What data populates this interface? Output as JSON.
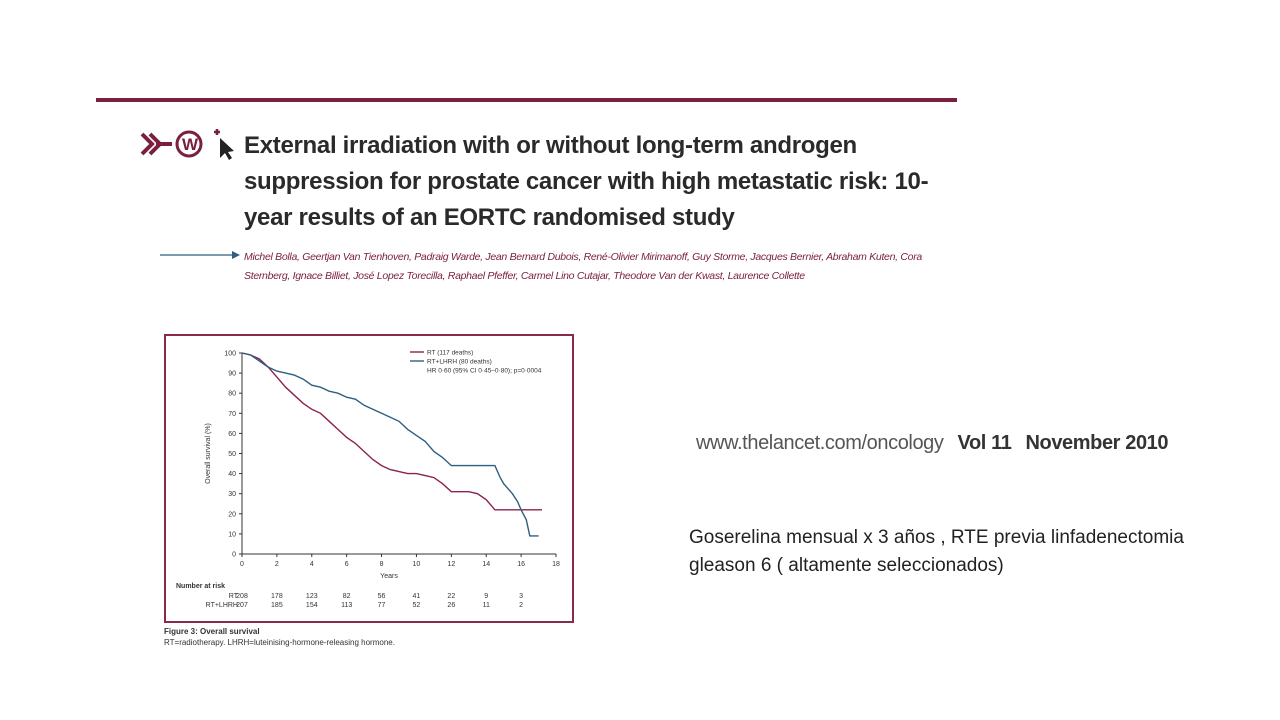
{
  "slide": {
    "title": "External irradiation with or without long-term androgen suppression for prostate cancer with high metastatic risk: 10-year results of an EORTC randomised study",
    "authors": "Michel Bolla, Geertjan Van Tienhoven, Padraig Warde, Jean Bernard Dubois, René-Olivier Mirimanoff, Guy Storme, Jacques Bernier, Abraham Kuten, Cora Sternberg, Ignace Billiet, José Lopez Torecilla, Raphael Pfeffer, Carmel Lino Cutajar, Theodore Van der Kwast, Laurence Collette",
    "journal_url": "www.thelancet.com/oncology",
    "journal_vol": "Vol 11",
    "journal_date": "November 2010",
    "note": "Goserelina mensual x 3 años , RTE previa linfadenectomia gleason 6 ( altamente seleccionados)",
    "figure_caption_bold": "Figure 3: Overall survival",
    "figure_caption_text": "RT=radiotherapy. LHRH=luteinising-hormone-releasing hormone.",
    "colors": {
      "accent": "#7a1f3d",
      "rt": "#8b2252",
      "rt_lhrh": "#2f5f7f"
    }
  },
  "chart_data": {
    "type": "line",
    "title": "",
    "xlabel": "Years",
    "ylabel": "Overall survival (%)",
    "xlim": [
      0,
      18
    ],
    "ylim": [
      0,
      100
    ],
    "x_ticks": [
      0,
      2,
      4,
      6,
      8,
      10,
      12,
      14,
      16,
      18
    ],
    "y_ticks": [
      0,
      10,
      20,
      30,
      40,
      50,
      60,
      70,
      80,
      90,
      100
    ],
    "legend": {
      "rt": "RT (117 deaths)",
      "rt_lhrh": "RT+LHRH (80 deaths)",
      "hr": "HR 0·60 (95% CI 0·45–0·80); p=0·0004"
    },
    "series": [
      {
        "name": "RT",
        "points": [
          [
            0,
            100
          ],
          [
            0.5,
            99
          ],
          [
            1,
            97
          ],
          [
            1.5,
            93
          ],
          [
            2,
            88
          ],
          [
            2.5,
            83
          ],
          [
            3,
            79
          ],
          [
            3.5,
            75
          ],
          [
            4,
            72
          ],
          [
            4.5,
            70
          ],
          [
            5,
            66
          ],
          [
            5.5,
            62
          ],
          [
            6,
            58
          ],
          [
            6.5,
            55
          ],
          [
            7,
            51
          ],
          [
            7.5,
            47
          ],
          [
            8,
            44
          ],
          [
            8.5,
            42
          ],
          [
            9,
            41
          ],
          [
            9.5,
            40
          ],
          [
            10,
            40
          ],
          [
            10.5,
            39
          ],
          [
            11,
            38
          ],
          [
            11.5,
            35
          ],
          [
            12,
            31
          ],
          [
            13,
            31
          ],
          [
            13.5,
            30
          ],
          [
            14,
            27
          ],
          [
            14.5,
            22
          ],
          [
            16,
            22
          ],
          [
            17.2,
            22
          ]
        ]
      },
      {
        "name": "RT+LHRH",
        "points": [
          [
            0,
            100
          ],
          [
            0.5,
            99
          ],
          [
            1,
            96
          ],
          [
            1.5,
            93
          ],
          [
            2,
            91
          ],
          [
            2.5,
            90
          ],
          [
            3,
            89
          ],
          [
            3.5,
            87
          ],
          [
            4,
            84
          ],
          [
            4.5,
            83
          ],
          [
            5,
            81
          ],
          [
            5.5,
            80
          ],
          [
            6,
            78
          ],
          [
            6.5,
            77
          ],
          [
            7,
            74
          ],
          [
            7.5,
            72
          ],
          [
            8,
            70
          ],
          [
            8.5,
            68
          ],
          [
            9,
            66
          ],
          [
            9.5,
            62
          ],
          [
            10,
            59
          ],
          [
            10.5,
            56
          ],
          [
            11,
            51
          ],
          [
            11.5,
            48
          ],
          [
            12,
            44
          ],
          [
            13,
            44
          ],
          [
            14.5,
            44
          ],
          [
            14.8,
            38
          ],
          [
            15,
            35
          ],
          [
            15.5,
            30
          ],
          [
            15.8,
            26
          ],
          [
            16,
            22
          ],
          [
            16.3,
            17
          ],
          [
            16.5,
            9
          ],
          [
            17,
            9
          ]
        ]
      }
    ],
    "risk_table": {
      "header": "Number at risk",
      "rows": [
        {
          "label": "RT",
          "values": [
            "208",
            "178",
            "123",
            "82",
            "56",
            "41",
            "22",
            "9",
            "3"
          ]
        },
        {
          "label": "RT+LHRH",
          "values": [
            "207",
            "185",
            "154",
            "113",
            "77",
            "52",
            "26",
            "11",
            "2"
          ]
        }
      ]
    }
  }
}
